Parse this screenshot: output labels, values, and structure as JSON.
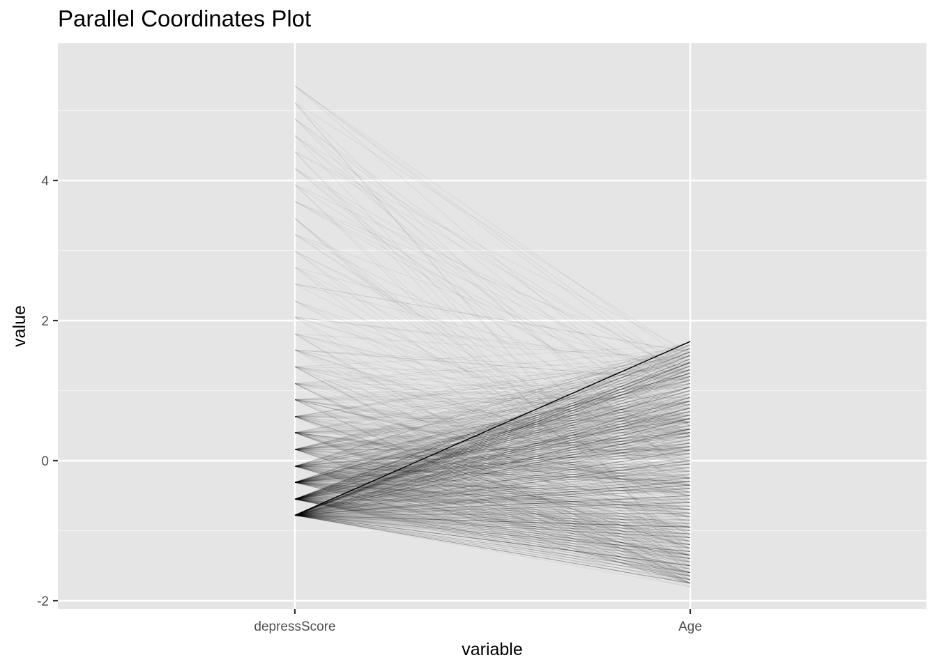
{
  "chart_data": {
    "type": "parallel-coordinates",
    "title": "Parallel Coordinates Plot",
    "xlabel": "variable",
    "ylabel": "value",
    "categories": [
      "depressScore",
      "Age"
    ],
    "ylim": [
      -2.05,
      5.7
    ],
    "yticks": [
      -2,
      0,
      2,
      4
    ],
    "grid": true,
    "background_color": "#e5e5e5",
    "line_color": "#000000",
    "line_opacity_note": "low alpha, overlapping lines",
    "axes": {
      "depressScore": {
        "levels": [
          -0.78,
          -0.55,
          -0.31,
          -0.08,
          0.16,
          0.4,
          0.63,
          0.87,
          1.1,
          1.34,
          1.58,
          1.81,
          2.05,
          2.28,
          2.52,
          2.76,
          2.99,
          3.23,
          3.46,
          3.7,
          3.94,
          4.17,
          4.41,
          4.64,
          4.88,
          5.11,
          5.35
        ]
      },
      "Age": {
        "range": [
          -1.78,
          1.7
        ]
      }
    }
  }
}
